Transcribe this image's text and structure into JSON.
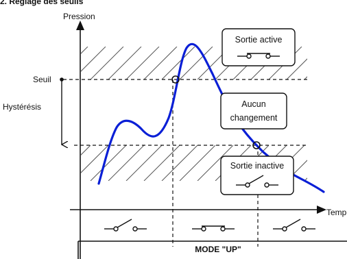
{
  "heading": "2. Réglage des seuils",
  "axes": {
    "y_label": "Pression",
    "x_label": "Temp"
  },
  "labels": {
    "threshold": "Seuil",
    "hysteresis": "Hystérésis"
  },
  "boxes": {
    "active": "Sortie active",
    "no_change_line1": "Aucun",
    "no_change_line2": "changement",
    "inactive": "Sortie inactive"
  },
  "mode_label": "MODE \"UP\"",
  "colors": {
    "curve": "#0a1fd6",
    "line": "#111111",
    "hatch": "#555555"
  }
}
